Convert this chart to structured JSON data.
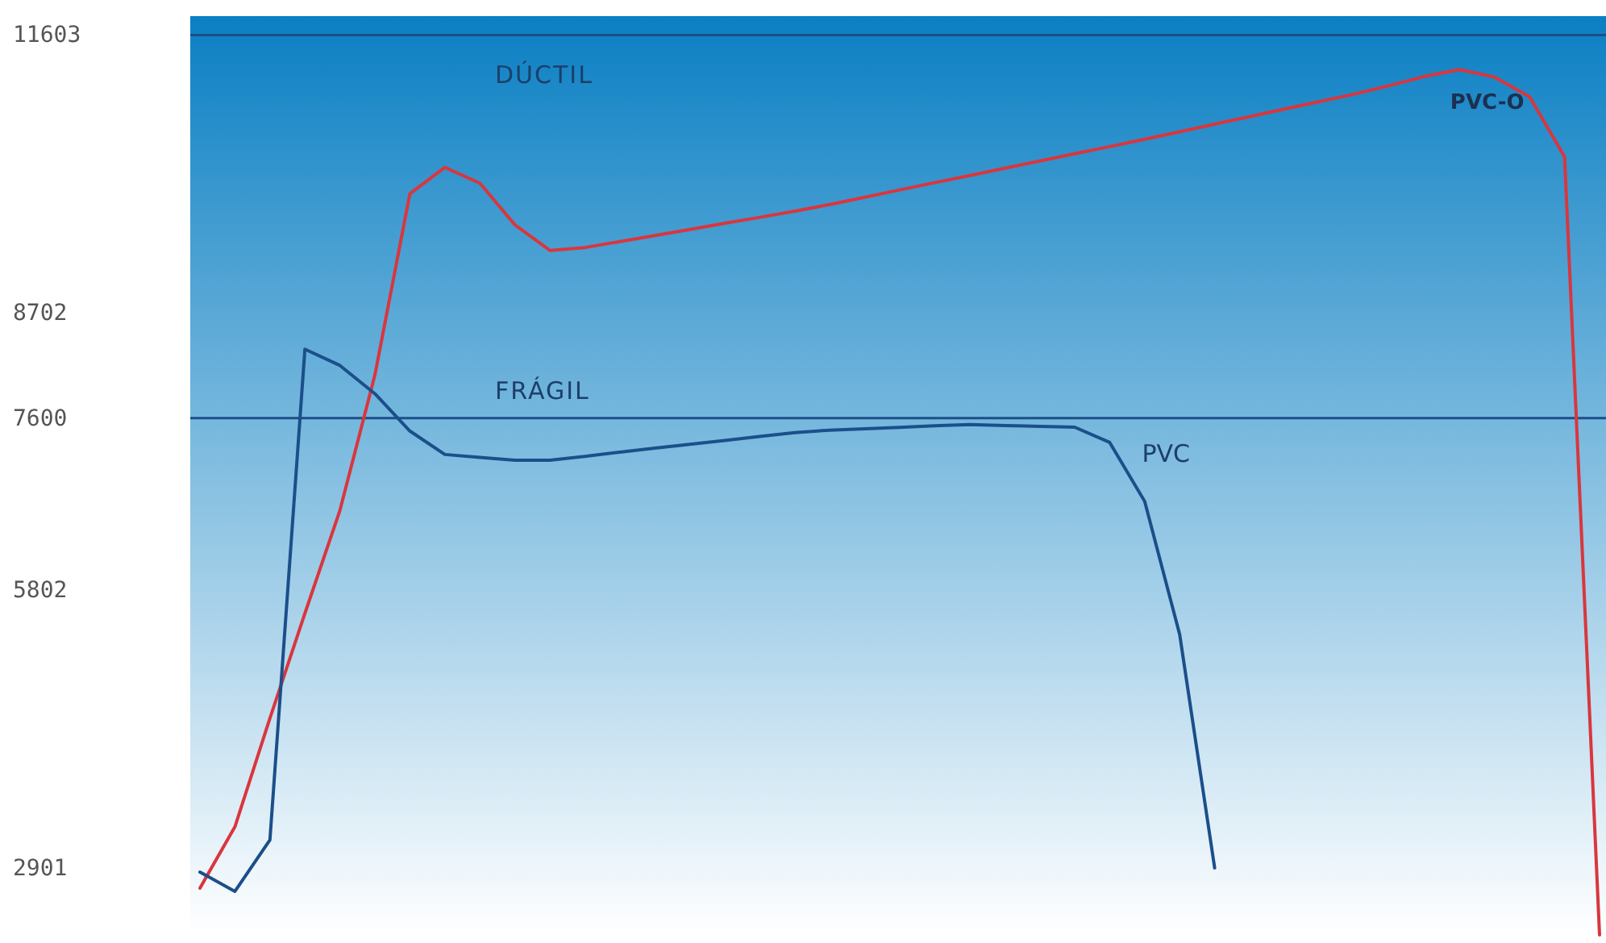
{
  "chart_data": {
    "type": "line",
    "ylim": [
      2200,
      11800
    ],
    "yticks": [
      2901,
      5802,
      7600,
      8702,
      11603
    ],
    "categories": [
      null,
      null,
      null,
      null,
      null,
      null,
      null,
      null,
      null,
      null,
      null,
      null,
      null,
      null,
      null,
      null,
      null,
      null,
      null,
      null,
      null,
      null,
      null,
      null,
      null,
      null,
      null,
      null,
      null,
      null,
      null,
      null,
      null,
      null,
      null,
      null,
      null,
      null,
      null,
      null,
      null
    ],
    "tick_labels": "y",
    "grid": false,
    "legend": false,
    "marker": "none",
    "line_style": "solid",
    "ref_lines": [
      {
        "axis": "y",
        "value": 11603,
        "label": "DÚCTIL",
        "color": "#1c4f86"
      },
      {
        "axis": "y",
        "value": 7600,
        "label": "FRÁGIL",
        "color": "#1c4f86"
      }
    ],
    "series": [
      {
        "name": "PVC-O",
        "color": "#d9363e",
        "values": [
          2689,
          3330,
          4465,
          5560,
          6635,
          8050,
          9945,
          10220,
          10055,
          9620,
          9352,
          9382,
          9444,
          9508,
          9571,
          9635,
          9698,
          9762,
          9832,
          9908,
          9984,
          10060,
          10135,
          10211,
          10286,
          10362,
          10437,
          10514,
          10592,
          10671,
          10750,
          10829,
          10907,
          10986,
          11075,
          11170,
          11242,
          11163,
          10958,
          10330,
          2200
        ]
      },
      {
        "name": "PVC",
        "color": "#1b4f8a",
        "values": [
          2857,
          2655,
          3193,
          8320,
          8150,
          7855,
          7465,
          7220,
          7190,
          7160,
          7160,
          7200,
          7245,
          7286,
          7326,
          7367,
          7408,
          7449,
          7474,
          7489,
          7504,
          7519,
          7533,
          7523,
          7514,
          7505,
          7346,
          6730,
          5340,
          2900,
          null,
          null,
          null,
          null,
          null,
          null,
          null,
          null,
          null,
          null,
          null
        ]
      }
    ]
  }
}
